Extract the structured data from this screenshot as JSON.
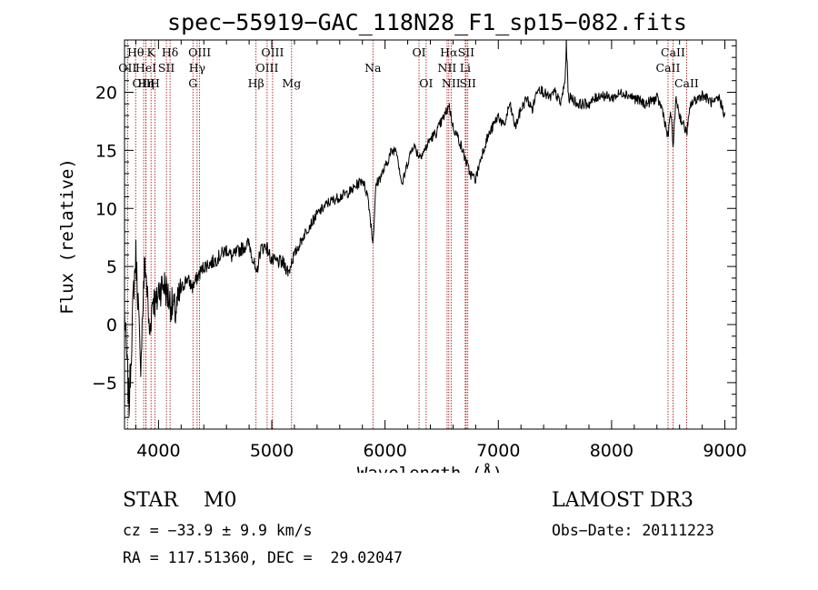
{
  "chart_data": {
    "type": "line",
    "title": "spec−55919−GAC_118N28_F1_sp15−082.fits",
    "xlabel": "Wavelength (Å)",
    "ylabel": "Flux (relative)",
    "xlim": [
      3700,
      9100
    ],
    "ylim": [
      -9,
      24.5
    ],
    "x_ticks": [
      4000,
      5000,
      6000,
      7000,
      8000,
      9000
    ],
    "x_tick_labels": [
      "4000",
      "5000",
      "6000",
      "7000",
      "8000",
      "9000"
    ],
    "y_ticks": [
      -5,
      0,
      5,
      10,
      15,
      20
    ],
    "y_tick_labels": [
      "−5",
      "0",
      "5",
      "10",
      "15",
      "20"
    ],
    "grid": false,
    "series": [
      {
        "name": "flux",
        "color": "#000000",
        "x": [
          3700,
          3720,
          3740,
          3760,
          3780,
          3800,
          3820,
          3840,
          3860,
          3880,
          3900,
          3920,
          3950,
          3980,
          4000,
          4050,
          4100,
          4150,
          4200,
          4250,
          4300,
          4350,
          4400,
          4500,
          4600,
          4650,
          4700,
          4800,
          4850,
          4861,
          4900,
          4950,
          5000,
          5100,
          5150,
          5175,
          5200,
          5300,
          5400,
          5500,
          5600,
          5700,
          5800,
          5850,
          5893,
          5920,
          6000,
          6050,
          6100,
          6150,
          6200,
          6250,
          6300,
          6350,
          6400,
          6450,
          6500,
          6550,
          6563,
          6600,
          6650,
          6700,
          6750,
          6800,
          6850,
          6900,
          6950,
          7000,
          7050,
          7100,
          7150,
          7200,
          7250,
          7300,
          7350,
          7400,
          7450,
          7500,
          7550,
          7590,
          7600,
          7620,
          7650,
          7700,
          7800,
          7900,
          8000,
          8100,
          8200,
          8300,
          8400,
          8450,
          8498,
          8520,
          8542,
          8570,
          8600,
          8662,
          8700,
          8800,
          8900,
          8950,
          9000
        ],
        "values": [
          1.0,
          -3.0,
          -7.0,
          -2.0,
          3.0,
          6.0,
          2.0,
          -4.0,
          1.0,
          5.5,
          3.0,
          -1.0,
          2.5,
          1.5,
          3.0,
          3.5,
          2.0,
          1.0,
          3.0,
          4.0,
          3.2,
          4.2,
          5.0,
          5.5,
          6.5,
          5.8,
          6.3,
          7.0,
          5.0,
          4.0,
          6.5,
          6.8,
          5.5,
          5.3,
          4.5,
          5.5,
          6.0,
          8.0,
          9.5,
          10.5,
          11.0,
          11.5,
          12.5,
          11.0,
          7.0,
          12.0,
          13.5,
          14.8,
          15.2,
          12.0,
          14.0,
          15.5,
          14.5,
          15.0,
          16.0,
          16.5,
          17.5,
          18.5,
          19.0,
          17.0,
          16.0,
          14.5,
          13.0,
          12.5,
          14.5,
          16.0,
          17.0,
          18.0,
          17.0,
          19.0,
          17.0,
          18.5,
          19.5,
          18.5,
          20.5,
          20.0,
          19.5,
          20.0,
          19.0,
          21.0,
          24.0,
          19.5,
          19.5,
          19.0,
          19.0,
          19.8,
          19.5,
          20.0,
          19.5,
          19.0,
          19.5,
          18.5,
          16.0,
          18.5,
          15.5,
          19.5,
          18.0,
          16.5,
          19.0,
          19.8,
          19.0,
          19.5,
          18.0
        ]
      }
    ],
    "line_markers": [
      {
        "name": "OII",
        "wavelength": 3727,
        "row": 1
      },
      {
        "name": "Hθ",
        "wavelength": 3798,
        "row": 0
      },
      {
        "name": "OIII",
        "wavelength": 3869,
        "row": 2
      },
      {
        "name": "K",
        "wavelength": 3934,
        "row": 0
      },
      {
        "name": "Hη",
        "wavelength": 3889,
        "row": 2
      },
      {
        "name": "HeI",
        "wavelength": 3889,
        "row": 1
      },
      {
        "name": "H",
        "wavelength": 3968,
        "row": 2
      },
      {
        "name": "SII",
        "wavelength": 4070,
        "row": 1
      },
      {
        "name": "Hδ",
        "wavelength": 4102,
        "row": 0
      },
      {
        "name": "G",
        "wavelength": 4304,
        "row": 2
      },
      {
        "name": "Hγ",
        "wavelength": 4341,
        "row": 1
      },
      {
        "name": "OIII",
        "wavelength": 4363,
        "row": 0
      },
      {
        "name": "Hβ",
        "wavelength": 4861,
        "row": 2
      },
      {
        "name": "OIII",
        "wavelength": 4959,
        "row": 1
      },
      {
        "name": "OIII",
        "wavelength": 5007,
        "row": 0
      },
      {
        "name": "Mg",
        "wavelength": 5175,
        "row": 2
      },
      {
        "name": "Na",
        "wavelength": 5893,
        "row": 1
      },
      {
        "name": "OI",
        "wavelength": 6300,
        "row": 0
      },
      {
        "name": "OI",
        "wavelength": 6363,
        "row": 2
      },
      {
        "name": "NII",
        "wavelength": 6548,
        "row": 1
      },
      {
        "name": "Hα",
        "wavelength": 6563,
        "row": 0
      },
      {
        "name": "NII",
        "wavelength": 6583,
        "row": 2
      },
      {
        "name": "Li",
        "wavelength": 6708,
        "row": 1
      },
      {
        "name": "SII",
        "wavelength": 6716,
        "row": 0
      },
      {
        "name": "SII",
        "wavelength": 6731,
        "row": 2
      },
      {
        "name": "CaII",
        "wavelength": 8498,
        "row": 1
      },
      {
        "name": "CaII",
        "wavelength": 8542,
        "row": 0
      },
      {
        "name": "CaII",
        "wavelength": 8662,
        "row": 2
      }
    ],
    "marker_color": "#a00000"
  },
  "info": {
    "classification": "STAR    M0",
    "survey": "LAMOST DR3",
    "redshift": "cz = −33.9 ± 9.9 km/s",
    "obs_date": "Obs−Date: 20111223",
    "coords": "RA = 117.51360, DEC =  29.02047"
  }
}
